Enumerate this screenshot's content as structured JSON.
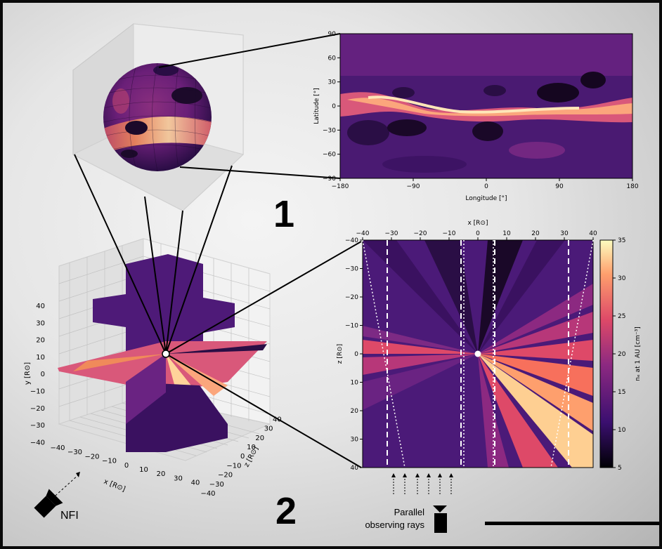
{
  "panel_number_1": "1",
  "panel_number_2": "2",
  "camera_label": "NFI",
  "rays_label_line1": "Parallel",
  "rays_label_line2": "observing rays",
  "colors": {
    "frame": "#0a0a0a",
    "background": "#e8e8e8",
    "accent": "#000000"
  },
  "colormap": "magma",
  "chart_data": [
    {
      "type": "heatmap",
      "title": "",
      "xlabel": "Longitude [°]",
      "ylabel": "Latitude [°]",
      "xlim": [
        -180,
        180
      ],
      "ylim": [
        -90,
        90
      ],
      "x_ticks": [
        "−180",
        "−90",
        "0",
        "90",
        "180"
      ],
      "y_ticks": [
        "90",
        "60",
        "30",
        "0",
        "−30",
        "−60",
        "−90"
      ]
    },
    {
      "type": "heatmap",
      "title": "",
      "xlabel": "x [R⊙]",
      "ylabel": "z [R⊙]",
      "xlim": [
        -40,
        40
      ],
      "ylim": [
        40,
        -40
      ],
      "x_ticks": [
        "−40",
        "−30",
        "−20",
        "−10",
        "0",
        "10",
        "20",
        "30",
        "40"
      ],
      "y_ticks": [
        "−40",
        "−30",
        "−20",
        "−10",
        "0",
        "10",
        "20",
        "30",
        "40"
      ],
      "colorbar": {
        "label": "nₑ at 1 AU [cm⁻³]",
        "range": [
          5,
          35
        ],
        "ticks": [
          "35",
          "30",
          "25",
          "20",
          "15",
          "10",
          "5"
        ]
      },
      "dashed_lines_x": [
        -32,
        -6,
        6,
        32
      ]
    },
    {
      "type": "heatmap",
      "title": "",
      "xlabel": "x [R⊙]",
      "ylabel": "y [R⊙]",
      "zlabel": "z [R⊙]",
      "x_ticks": [
        "−40",
        "−30",
        "−20",
        "−10",
        "0",
        "10",
        "20",
        "30",
        "40"
      ],
      "y_ticks": [
        "40",
        "30",
        "20",
        "10",
        "0",
        "−10",
        "−20",
        "−30",
        "−40"
      ],
      "z_ticks": [
        "−40",
        "−30",
        "−20",
        "−10",
        "0",
        "10",
        "20",
        "30",
        "40"
      ]
    }
  ]
}
